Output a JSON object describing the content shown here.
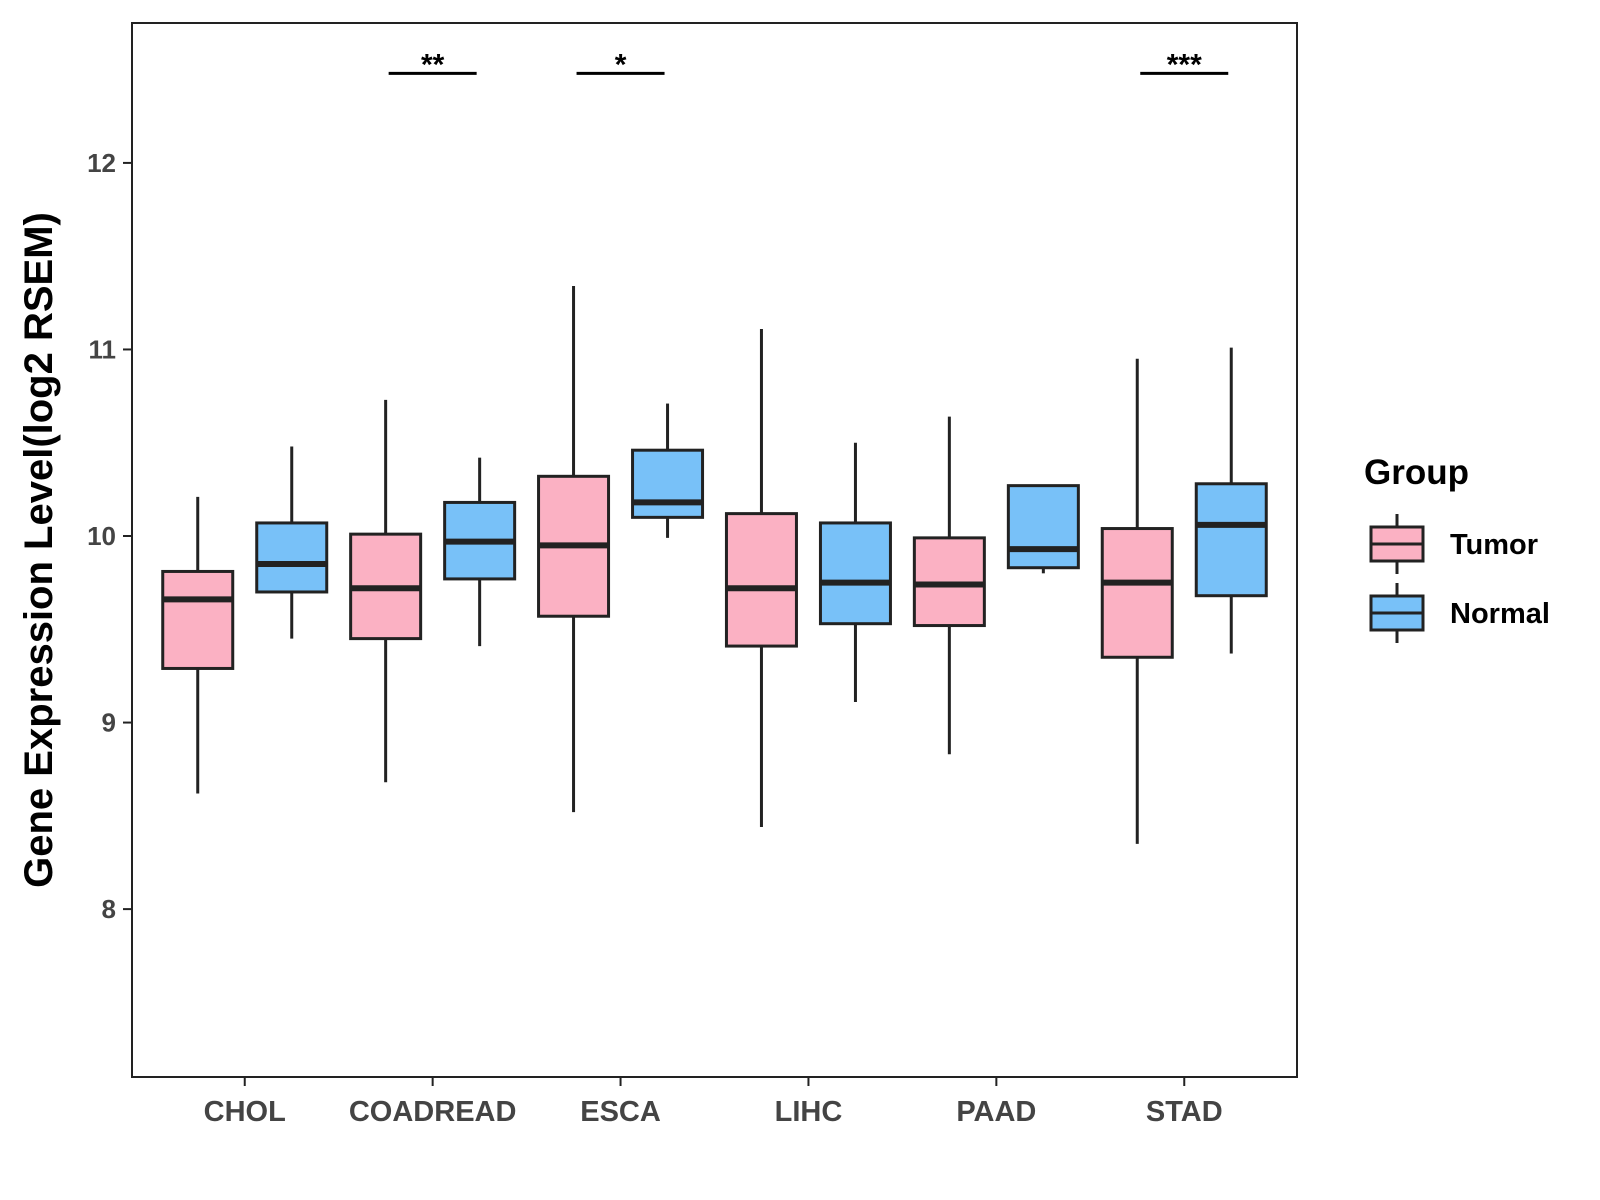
{
  "chart_data": {
    "type": "boxplot",
    "title": "",
    "xlabel": "",
    "ylabel": "Gene Expression Level(log2 RSEM)",
    "ylim": [
      7.1,
      12.75
    ],
    "yticks": [
      8,
      9,
      10,
      11,
      12
    ],
    "categories": [
      "CHOL",
      "COADREAD",
      "ESCA",
      "LIHC",
      "PAAD",
      "STAD"
    ],
    "legend": {
      "title": "Group",
      "position": "right"
    },
    "series": [
      {
        "name": "Tumor",
        "color": "#FBB1C3",
        "boxes": [
          {
            "min": 8.62,
            "q1": 9.29,
            "median": 9.66,
            "q3": 9.81,
            "max": 10.21
          },
          {
            "min": 8.68,
            "q1": 9.45,
            "median": 9.72,
            "q3": 10.01,
            "max": 10.73
          },
          {
            "min": 8.52,
            "q1": 9.57,
            "median": 9.95,
            "q3": 10.32,
            "max": 11.34
          },
          {
            "min": 8.44,
            "q1": 9.41,
            "median": 9.72,
            "q3": 10.12,
            "max": 11.11
          },
          {
            "min": 8.83,
            "q1": 9.52,
            "median": 9.74,
            "q3": 9.99,
            "max": 10.64
          },
          {
            "min": 8.35,
            "q1": 9.35,
            "median": 9.75,
            "q3": 10.04,
            "max": 10.95
          }
        ]
      },
      {
        "name": "Normal",
        "color": "#78C1F8",
        "boxes": [
          {
            "min": 9.45,
            "q1": 9.7,
            "median": 9.85,
            "q3": 10.07,
            "max": 10.48
          },
          {
            "min": 9.41,
            "q1": 9.77,
            "median": 9.97,
            "q3": 10.18,
            "max": 10.42
          },
          {
            "min": 9.99,
            "q1": 10.1,
            "median": 10.18,
            "q3": 10.46,
            "max": 10.71
          },
          {
            "min": 9.11,
            "q1": 9.53,
            "median": 9.75,
            "q3": 10.07,
            "max": 10.5
          },
          {
            "min": 9.8,
            "q1": 9.83,
            "median": 9.93,
            "q3": 10.27,
            "max": 10.27
          },
          {
            "min": 9.37,
            "q1": 9.68,
            "median": 10.06,
            "q3": 10.28,
            "max": 11.01
          }
        ]
      }
    ],
    "significance": [
      {
        "category": "COADREAD",
        "label": "**",
        "y": 12.48
      },
      {
        "category": "ESCA",
        "label": "*",
        "y": 12.48
      },
      {
        "category": "STAD",
        "label": "***",
        "y": 12.48
      }
    ]
  }
}
